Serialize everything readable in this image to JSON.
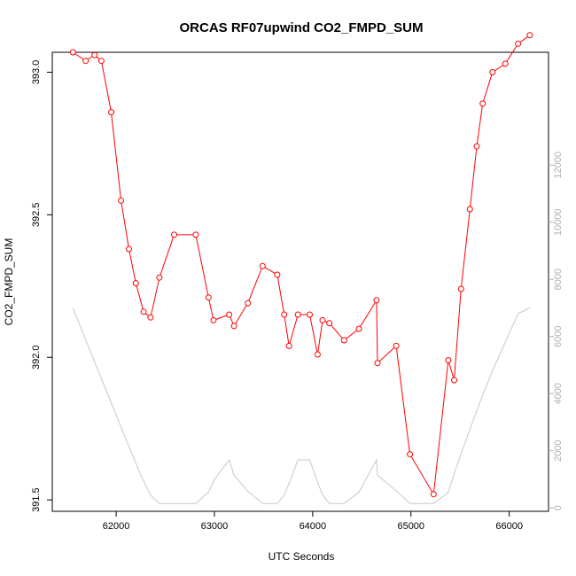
{
  "chart_data": {
    "type": "line",
    "title": "ORCAS RF07upwind CO2_FMPD_SUM",
    "xlabel": "UTC Seconds",
    "ylabel": "CO2_FMPD_SUM",
    "xlim": [
      61350,
      66400
    ],
    "ylim": [
      391.46,
      393.07
    ],
    "y2lim": [
      -120,
      15950
    ],
    "x_ticks": [
      62000,
      63000,
      64000,
      65000,
      66000
    ],
    "y_ticks": [
      391.5,
      392.0,
      392.5,
      393.0
    ],
    "y2_ticks": [
      0,
      2000,
      4000,
      6000,
      8000,
      10000,
      12000
    ],
    "x_tick_labels": [
      "62000",
      "63000",
      "64000",
      "65000",
      "66000"
    ],
    "y_tick_labels": [
      "391.5",
      "392.0",
      "392.5",
      "393.0"
    ],
    "y2_tick_labels": [
      "0",
      "2000",
      "4000",
      "6000",
      "8000",
      "10000",
      "12000"
    ],
    "grid": false,
    "legend": "none",
    "colors": {
      "co2": "#ff0000",
      "altitude": "#c8c8c8",
      "axis": "#000000",
      "right_axis": "#b0b0b0"
    },
    "series": [
      {
        "axis": "left",
        "style": "line+circle",
        "color": "#ff0000",
        "x": [
          61560,
          61690,
          61780,
          61850,
          61950,
          62050,
          62130,
          62200,
          62280,
          62350,
          62440,
          62590,
          62810,
          62940,
          62990,
          63150,
          63200,
          63340,
          63490,
          63640,
          63710,
          63760,
          63850,
          63970,
          64050,
          64100,
          64170,
          64320,
          64470,
          64650,
          64660,
          64850,
          64990,
          65230,
          65380,
          65440,
          65510,
          65600,
          65670,
          65730,
          65830,
          65960,
          66090,
          66210
        ],
        "y": [
          393.07,
          393.04,
          393.06,
          393.04,
          392.86,
          392.55,
          392.38,
          392.26,
          392.16,
          392.14,
          392.28,
          392.43,
          392.43,
          392.21,
          392.13,
          392.15,
          392.11,
          392.19,
          392.32,
          392.29,
          392.15,
          392.04,
          392.15,
          392.15,
          392.01,
          392.13,
          392.12,
          392.06,
          392.1,
          392.2,
          391.98,
          392.04,
          391.66,
          391.52,
          391.99,
          391.92,
          392.24,
          392.52,
          392.74,
          392.89,
          393.0,
          393.03,
          393.1,
          393.13
        ]
      },
      {
        "axis": "right",
        "style": "line",
        "color": "#c8c8c8",
        "x": [
          61560,
          61700,
          61900,
          62100,
          62250,
          62350,
          62440,
          62590,
          62810,
          62940,
          63000,
          63150,
          63200,
          63340,
          63490,
          63640,
          63710,
          63760,
          63850,
          63970,
          64050,
          64100,
          64170,
          64320,
          64470,
          64650,
          64660,
          64850,
          64990,
          65230,
          65380,
          65440,
          65510,
          65600,
          65670,
          65730,
          65830,
          65960,
          66090,
          66210
        ],
        "y": [
          7000,
          5800,
          4100,
          2400,
          1150,
          450,
          150,
          150,
          150,
          550,
          1000,
          1680,
          1150,
          580,
          150,
          150,
          450,
          850,
          1680,
          1680,
          900,
          450,
          150,
          150,
          550,
          1680,
          1150,
          600,
          150,
          150,
          550,
          1200,
          1900,
          2750,
          3400,
          3950,
          4800,
          5800,
          6800,
          7000
        ]
      }
    ]
  }
}
